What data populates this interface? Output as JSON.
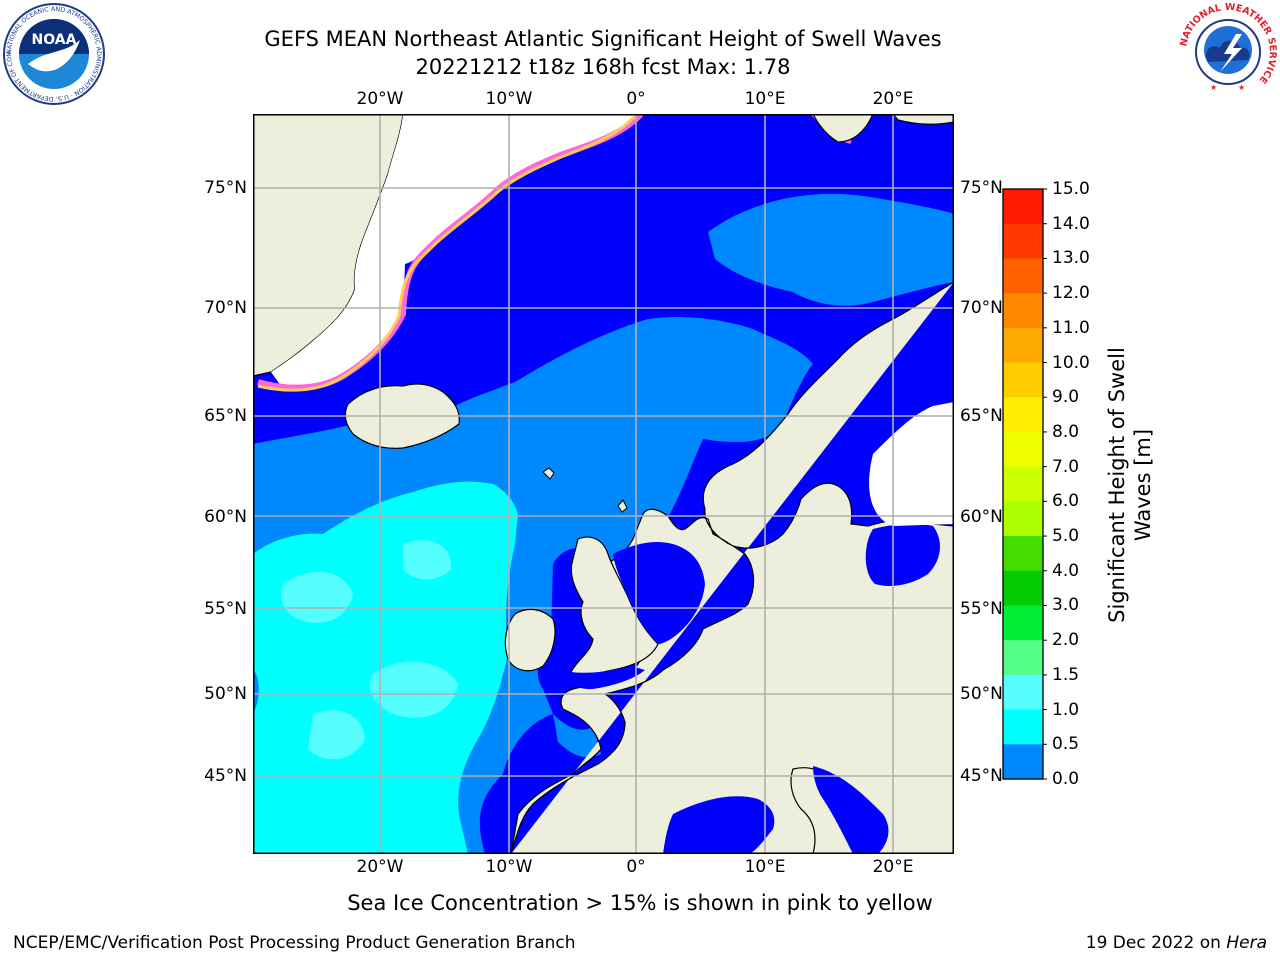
{
  "title_line1": "GEFS MEAN Northeast Atlantic Significant Height of Swell Waves",
  "title_line2": "20221212 t18z 168h fcst   Max: 1.78",
  "longitude_labels": [
    "20°W",
    "10°W",
    "0°",
    "10°E",
    "20°E"
  ],
  "latitude_labels": [
    "75°N",
    "70°N",
    "65°N",
    "60°N",
    "55°N",
    "50°N",
    "45°N"
  ],
  "colorbar": {
    "title": "Significant Height of Swell Waves [m]",
    "ticks": [
      "15.0",
      "14.0",
      "13.0",
      "12.0",
      "11.0",
      "10.0",
      "9.0",
      "8.0",
      "7.0",
      "6.0",
      "5.0",
      "4.0",
      "3.0",
      "2.0",
      "1.5",
      "1.0",
      "0.5",
      "0.0"
    ],
    "colors": [
      "#ff1a00",
      "#ff3800",
      "#ff6000",
      "#ff8800",
      "#ffaa00",
      "#ffcc00",
      "#ffee00",
      "#eeff00",
      "#ccff00",
      "#aaff00",
      "#44dd00",
      "#00cc00",
      "#00ee33",
      "#55ff88",
      "#aaffee",
      "#55ffff",
      "#00ffff",
      "#0088ff",
      "#0000ff"
    ],
    "bounds": [
      0,
      0.5,
      1.0,
      1.5,
      2.0,
      3.0,
      4.0,
      5.0,
      6.0,
      7.0,
      8.0,
      9.0,
      10.0,
      11.0,
      12.0,
      13.0,
      14.0,
      15.0
    ]
  },
  "note": "Sea Ice Concentration > 15% is shown in pink to yellow",
  "footer_left": "NCEP/EMC/Verification Post Processing Product Generation Branch",
  "footer_right_date": "19 Dec 2022 on ",
  "footer_right_host": "Hera",
  "logos": {
    "left_icon": "noaa-logo-icon",
    "left_text": "NOAA",
    "left_ring_text": "NATIONAL OCEANIC AND ATMOSPHERIC ADMINISTRATION · U.S. DEPARTMENT OF COMMERCE",
    "right_icon": "nws-logo-icon",
    "right_ring_text": "NATIONAL WEATHER SERVICE"
  },
  "colors": {
    "land": "#eeeedd",
    "ocean_low": "#0000ff",
    "ocean_mid": "#0088ff",
    "ocean_high": "#00ffff",
    "ocean_peak": "#55ffff",
    "ice_edge": "#ff66dd",
    "ice_mid": "#ffcc55",
    "grid": "#b0b0b0"
  }
}
